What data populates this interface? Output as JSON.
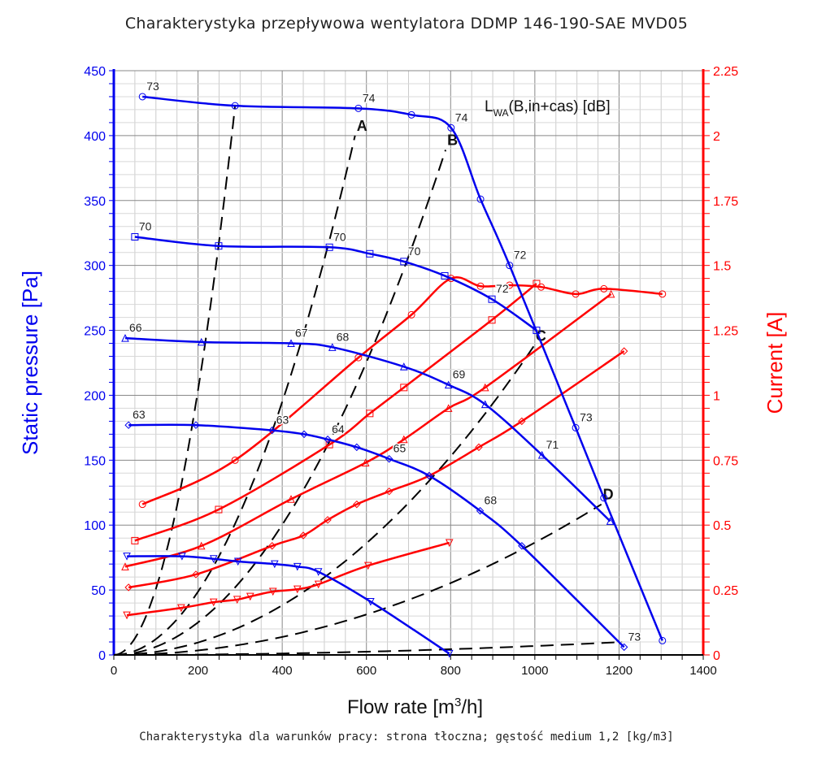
{
  "title": "Charakterystyka przepływowa wentylatora DDMP 146-190-SAE MVD05",
  "subtitle": "Charakterystyka dla warunków pracy: strona tłoczna; gęstość medium 1,2 [kg/m3]",
  "chart_data": {
    "type": "line",
    "xlabel": "Flow rate [m3/h]",
    "xlabel_main": "Flow rate [m",
    "xlabel_sup": "3",
    "xlabel_end": "/h]",
    "ylabel": "Static pressure [Pa]",
    "y2label": "Current [A]",
    "xlim": [
      0,
      1400
    ],
    "ylim": [
      0,
      450
    ],
    "y2lim": [
      0,
      2.25
    ],
    "xticks": [
      "0",
      "200",
      "400",
      "600",
      "800",
      "1000",
      "1200",
      "1400"
    ],
    "yticks": [
      "0",
      "50",
      "100",
      "150",
      "200",
      "250",
      "300",
      "350",
      "400",
      "450"
    ],
    "y2ticks": [
      "0",
      "0.25",
      "0.5",
      "0.75",
      "1",
      "1.25",
      "1.5",
      "1.75",
      "2",
      "2.25"
    ],
    "grid": true,
    "annotation": {
      "main": "L",
      "sub": "WA",
      "rest": "(B,in+cas) [dB]"
    },
    "colors": {
      "pressure": "#0000ee",
      "current": "#ff0000",
      "system": "#000000"
    },
    "pressure_series": [
      {
        "marker": "circle",
        "x": [
          68,
          288,
          581,
          707,
          801,
          871,
          940,
          1097,
          1164,
          1303
        ],
        "y": [
          430,
          423,
          421,
          416,
          406,
          351,
          300,
          175,
          121,
          11
        ],
        "labels": [
          "73",
          "",
          "74",
          "",
          "74",
          "",
          "72",
          "73",
          "",
          ""
        ]
      },
      {
        "marker": "square",
        "x": [
          50,
          249,
          512,
          608,
          689,
          786,
          898,
          1004
        ],
        "y": [
          322,
          315,
          314,
          309,
          303,
          292,
          274,
          250
        ],
        "labels": [
          "70",
          "",
          "70",
          "",
          "70",
          "",
          "72",
          ""
        ]
      },
      {
        "marker": "triangle-up",
        "x": [
          27,
          208,
          421,
          519,
          689,
          795,
          882,
          1017,
          1179
        ],
        "y": [
          244,
          241,
          240,
          237,
          222,
          208,
          193,
          154,
          103
        ],
        "labels": [
          "66",
          "",
          "67",
          "68",
          "",
          "69",
          "",
          "71",
          ""
        ]
      },
      {
        "marker": "diamond",
        "x": [
          35,
          195,
          376,
          452,
          508,
          577,
          654,
          749,
          870,
          969,
          1212
        ],
        "y": [
          177,
          177,
          173,
          170,
          166,
          160,
          151,
          138,
          111,
          84,
          6
        ],
        "labels": [
          "63",
          "",
          "63",
          "",
          "64",
          "",
          "65",
          "",
          "68",
          "",
          "73"
        ]
      },
      {
        "marker": "triangle-down",
        "x": [
          31,
          162,
          237,
          295,
          382,
          436,
          486,
          610,
          797
        ],
        "y": [
          76,
          76,
          74,
          72,
          70,
          68,
          64,
          41,
          1
        ],
        "labels": [
          "",
          "",
          "",
          "",
          "",
          "",
          "",
          "",
          ""
        ]
      }
    ],
    "current_series": [
      {
        "marker": "circle",
        "x": [
          68,
          288,
          581,
          707,
          801,
          871,
          940,
          1015,
          1097,
          1164,
          1303
        ],
        "y": [
          0.58,
          0.75,
          1.145,
          1.31,
          1.45,
          1.42,
          1.424,
          1.417,
          1.39,
          1.41,
          1.39
        ]
      },
      {
        "marker": "square",
        "x": [
          50,
          249,
          512,
          608,
          689,
          898,
          1004
        ],
        "y": [
          0.44,
          0.56,
          0.81,
          0.93,
          1.03,
          1.29,
          1.43
        ]
      },
      {
        "marker": "triangle-up",
        "x": [
          27,
          208,
          421,
          598,
          689,
          795,
          882,
          1181
        ],
        "y": [
          0.34,
          0.42,
          0.6,
          0.74,
          0.83,
          0.95,
          1.03,
          1.39
        ]
      },
      {
        "marker": "diamond",
        "x": [
          35,
          195,
          376,
          450,
          508,
          577,
          654,
          749,
          867,
          969,
          1212
        ],
        "y": [
          0.26,
          0.31,
          0.42,
          0.46,
          0.52,
          0.58,
          0.63,
          0.69,
          0.8,
          0.9,
          1.17
        ]
      },
      {
        "marker": "triangle-down",
        "x": [
          31,
          160,
          237,
          293,
          324,
          378,
          436,
          486,
          604,
          797
        ],
        "y": [
          0.153,
          0.181,
          0.203,
          0.213,
          0.225,
          0.244,
          0.253,
          0.272,
          0.344,
          0.432
        ]
      }
    ],
    "system_curves": [
      {
        "label": "",
        "x_end": 288,
        "y_end": 423
      },
      {
        "label": "A",
        "x_end": 573,
        "y_end": 400
      },
      {
        "label": "B",
        "x_end": 788,
        "y_end": 389
      },
      {
        "label": "C",
        "x_end": 998,
        "y_end": 238
      },
      {
        "label": "D",
        "x_end": 1158,
        "y_end": 116
      },
      {
        "label": "",
        "x_end": 1207,
        "y_end": 10
      }
    ]
  }
}
